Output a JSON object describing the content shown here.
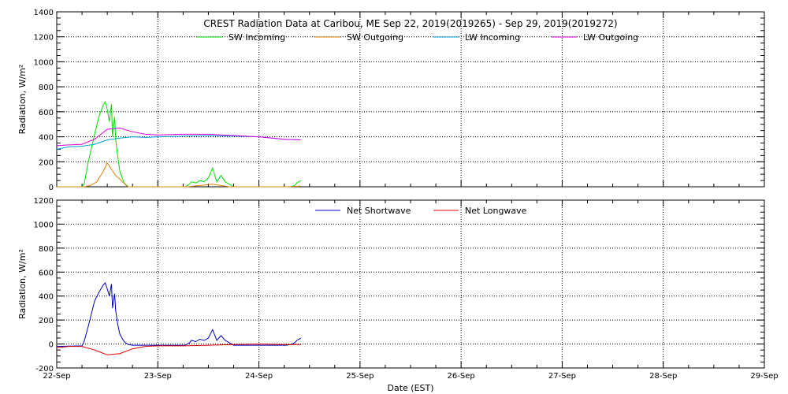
{
  "chart_data": [
    {
      "type": "line",
      "title": "CREST Radiation Data at Caribou, ME   Sep 22, 2019(2019265) - Sep 29, 2019(2019272)",
      "xlabel": "",
      "ylabel": "Radiation, W/m^2",
      "ylim": [
        0,
        1400
      ],
      "xlim": [
        "2019-09-22",
        "2019-09-29"
      ],
      "yticks": [
        0,
        200,
        400,
        600,
        800,
        1000,
        1200,
        1400
      ],
      "grid": true,
      "legend_position": "top",
      "series": [
        {
          "name": "SW Incoming",
          "color": "#00e000",
          "x": [
            "2019-09-22 00:00",
            "2019-09-22 06:00",
            "2019-09-22 06:30",
            "2019-09-22 07:30",
            "2019-09-22 09:00",
            "2019-09-22 10:00",
            "2019-09-22 11:00",
            "2019-09-22 11:30",
            "2019-09-22 12:00",
            "2019-09-22 12:30",
            "2019-09-22 13:00",
            "2019-09-22 13:15",
            "2019-09-22 13:45",
            "2019-09-22 14:00",
            "2019-09-22 14:30",
            "2019-09-22 15:00",
            "2019-09-22 16:00",
            "2019-09-22 17:00",
            "2019-09-22 18:00",
            "2019-09-22 19:00",
            "2019-09-22 20:00",
            "2019-09-23 06:30",
            "2019-09-23 07:30",
            "2019-09-23 08:00",
            "2019-09-23 09:00",
            "2019-09-23 10:00",
            "2019-09-23 11:00",
            "2019-09-23 12:00",
            "2019-09-23 13:00",
            "2019-09-23 14:00",
            "2019-09-23 15:00",
            "2019-09-23 16:00",
            "2019-09-23 17:00",
            "2019-09-23 18:00",
            "2019-09-24 06:30",
            "2019-09-24 07:30",
            "2019-09-24 08:30",
            "2019-09-24 09:00",
            "2019-09-24 10:00"
          ],
          "values": [
            0,
            0,
            20,
            200,
            420,
            560,
            650,
            680,
            620,
            520,
            660,
            400,
            560,
            380,
            240,
            120,
            30,
            0,
            0,
            0,
            0,
            0,
            20,
            40,
            30,
            50,
            40,
            70,
            150,
            40,
            90,
            40,
            20,
            0,
            0,
            0,
            10,
            30,
            50
          ]
        },
        {
          "name": "SW Outgoing",
          "color": "#e08000",
          "x": [
            "2019-09-22 00:00",
            "2019-09-22 06:30",
            "2019-09-22 08:00",
            "2019-09-22 09:30",
            "2019-09-22 11:00",
            "2019-09-22 12:00",
            "2019-09-22 13:00",
            "2019-09-22 14:00",
            "2019-09-22 15:00",
            "2019-09-22 16:30",
            "2019-09-22 17:00",
            "2019-09-23 07:00",
            "2019-09-23 10:00",
            "2019-09-23 13:00",
            "2019-09-23 15:00",
            "2019-09-23 17:00",
            "2019-09-24 06:30",
            "2019-09-24 10:00"
          ],
          "values": [
            0,
            0,
            10,
            40,
            120,
            190,
            140,
            90,
            60,
            10,
            0,
            0,
            10,
            20,
            10,
            0,
            0,
            5
          ]
        },
        {
          "name": "LW Incoming",
          "color": "#00a0e0",
          "x": [
            "2019-09-22 00:00",
            "2019-09-22 03:00",
            "2019-09-22 06:00",
            "2019-09-22 09:00",
            "2019-09-22 12:00",
            "2019-09-22 15:00",
            "2019-09-22 18:00",
            "2019-09-22 21:00",
            "2019-09-23 00:00",
            "2019-09-23 06:00",
            "2019-09-23 12:00",
            "2019-09-23 18:00",
            "2019-09-24 00:00",
            "2019-09-24 06:00",
            "2019-09-24 10:00"
          ],
          "values": [
            300,
            320,
            325,
            340,
            375,
            390,
            400,
            395,
            400,
            405,
            410,
            405,
            400,
            380,
            375
          ]
        },
        {
          "name": "LW Outgoing",
          "color": "#e000e0",
          "x": [
            "2019-09-22 00:00",
            "2019-09-22 03:00",
            "2019-09-22 06:00",
            "2019-09-22 09:00",
            "2019-09-22 12:00",
            "2019-09-22 15:00",
            "2019-09-22 18:00",
            "2019-09-22 21:00",
            "2019-09-23 00:00",
            "2019-09-23 06:00",
            "2019-09-23 12:00",
            "2019-09-23 18:00",
            "2019-09-24 00:00",
            "2019-09-24 06:00",
            "2019-09-24 10:00"
          ],
          "values": [
            330,
            335,
            340,
            380,
            460,
            470,
            440,
            420,
            415,
            420,
            420,
            410,
            400,
            380,
            375
          ]
        }
      ]
    },
    {
      "type": "line",
      "title": "",
      "xlabel": "Date (EST)",
      "ylabel": "Radiation, W/m^2",
      "ylim": [
        -200,
        1200
      ],
      "xlim": [
        "2019-09-22",
        "2019-09-29"
      ],
      "yticks": [
        -200,
        0,
        200,
        400,
        600,
        800,
        1000,
        1200
      ],
      "xtick_labels": [
        "22-Sep",
        "23-Sep",
        "24-Sep",
        "25-Sep",
        "26-Sep",
        "27-Sep",
        "28-Sep",
        "29-Sep"
      ],
      "grid": true,
      "legend_position": "top",
      "series": [
        {
          "name": "Net Shortwave",
          "color": "#0000c0",
          "x": [
            "2019-09-22 00:00",
            "2019-09-22 06:00",
            "2019-09-22 06:30",
            "2019-09-22 07:30",
            "2019-09-22 09:00",
            "2019-09-22 10:00",
            "2019-09-22 11:00",
            "2019-09-22 11:30",
            "2019-09-22 12:00",
            "2019-09-22 12:30",
            "2019-09-22 13:00",
            "2019-09-22 13:15",
            "2019-09-22 13:45",
            "2019-09-22 14:00",
            "2019-09-22 14:30",
            "2019-09-22 15:00",
            "2019-09-22 16:00",
            "2019-09-22 17:00",
            "2019-09-22 18:00",
            "2019-09-22 19:00",
            "2019-09-22 20:00",
            "2019-09-23 06:30",
            "2019-09-23 07:30",
            "2019-09-23 08:00",
            "2019-09-23 09:00",
            "2019-09-23 10:00",
            "2019-09-23 11:00",
            "2019-09-23 12:00",
            "2019-09-23 13:00",
            "2019-09-23 14:00",
            "2019-09-23 15:00",
            "2019-09-23 16:00",
            "2019-09-23 17:00",
            "2019-09-23 18:00",
            "2019-09-24 06:30",
            "2019-09-24 07:30",
            "2019-09-24 08:30",
            "2019-09-24 09:00",
            "2019-09-24 10:00"
          ],
          "values": [
            -20,
            -15,
            20,
            150,
            360,
            430,
            490,
            510,
            460,
            400,
            500,
            300,
            420,
            280,
            160,
            80,
            20,
            -5,
            -10,
            -10,
            -10,
            -10,
            10,
            30,
            20,
            40,
            30,
            50,
            120,
            30,
            70,
            30,
            10,
            -10,
            -10,
            -5,
            10,
            30,
            50
          ]
        },
        {
          "name": "Net Longwave",
          "color": "#e00000",
          "x": [
            "2019-09-22 00:00",
            "2019-09-22 03:00",
            "2019-09-22 06:00",
            "2019-09-22 09:00",
            "2019-09-22 12:00",
            "2019-09-22 15:00",
            "2019-09-22 18:00",
            "2019-09-22 21:00",
            "2019-09-23 00:00",
            "2019-09-23 06:00",
            "2019-09-23 12:00",
            "2019-09-23 18:00",
            "2019-09-24 00:00",
            "2019-09-24 06:00",
            "2019-09-24 10:00"
          ],
          "values": [
            -30,
            -20,
            -20,
            -50,
            -90,
            -80,
            -40,
            -20,
            -15,
            -15,
            -10,
            -5,
            0,
            -5,
            -5
          ]
        }
      ]
    }
  ]
}
